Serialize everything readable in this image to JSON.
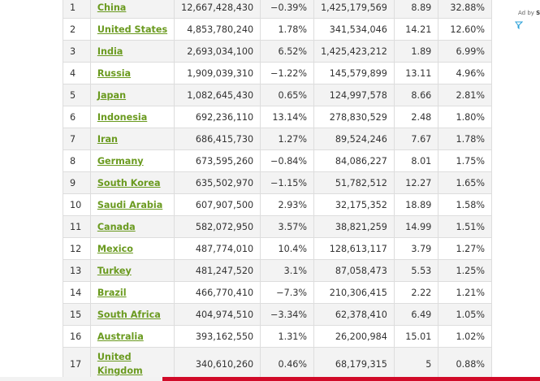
{
  "ad": {
    "prefix": "Ad by",
    "brand": "Sp"
  },
  "rows": [
    {
      "rank": "1",
      "country": "China",
      "emissions": "12,667,428,430",
      "change": "−0.39%",
      "population": "1,425,179,569",
      "per_capita": "8.89",
      "share": "32.88%"
    },
    {
      "rank": "2",
      "country": "United States",
      "emissions": "4,853,780,240",
      "change": "1.78%",
      "population": "341,534,046",
      "per_capita": "14.21",
      "share": "12.60%"
    },
    {
      "rank": "3",
      "country": "India",
      "emissions": "2,693,034,100",
      "change": "6.52%",
      "population": "1,425,423,212",
      "per_capita": "1.89",
      "share": "6.99%"
    },
    {
      "rank": "4",
      "country": "Russia",
      "emissions": "1,909,039,310",
      "change": "−1.22%",
      "population": "145,579,899",
      "per_capita": "13.11",
      "share": "4.96%"
    },
    {
      "rank": "5",
      "country": "Japan",
      "emissions": "1,082,645,430",
      "change": "0.65%",
      "population": "124,997,578",
      "per_capita": "8.66",
      "share": "2.81%"
    },
    {
      "rank": "6",
      "country": "Indonesia",
      "emissions": "692,236,110",
      "change": "13.14%",
      "population": "278,830,529",
      "per_capita": "2.48",
      "share": "1.80%"
    },
    {
      "rank": "7",
      "country": "Iran",
      "emissions": "686,415,730",
      "change": "1.27%",
      "population": "89,524,246",
      "per_capita": "7.67",
      "share": "1.78%"
    },
    {
      "rank": "8",
      "country": "Germany",
      "emissions": "673,595,260",
      "change": "−0.84%",
      "population": "84,086,227",
      "per_capita": "8.01",
      "share": "1.75%"
    },
    {
      "rank": "9",
      "country": "South Korea",
      "emissions": "635,502,970",
      "change": "−1.15%",
      "population": "51,782,512",
      "per_capita": "12.27",
      "share": "1.65%"
    },
    {
      "rank": "10",
      "country": "Saudi Arabia",
      "emissions": "607,907,500",
      "change": "2.93%",
      "population": "32,175,352",
      "per_capita": "18.89",
      "share": "1.58%"
    },
    {
      "rank": "11",
      "country": "Canada",
      "emissions": "582,072,950",
      "change": "3.57%",
      "population": "38,821,259",
      "per_capita": "14.99",
      "share": "1.51%"
    },
    {
      "rank": "12",
      "country": "Mexico",
      "emissions": "487,774,010",
      "change": "10.4%",
      "population": "128,613,117",
      "per_capita": "3.79",
      "share": "1.27%"
    },
    {
      "rank": "13",
      "country": "Turkey",
      "emissions": "481,247,520",
      "change": "3.1%",
      "population": "87,058,473",
      "per_capita": "5.53",
      "share": "1.25%"
    },
    {
      "rank": "14",
      "country": "Brazil",
      "emissions": "466,770,410",
      "change": "−7.3%",
      "population": "210,306,415",
      "per_capita": "2.22",
      "share": "1.21%"
    },
    {
      "rank": "15",
      "country": "South Africa",
      "emissions": "404,974,510",
      "change": "−3.34%",
      "population": "62,378,410",
      "per_capita": "6.49",
      "share": "1.05%"
    },
    {
      "rank": "16",
      "country": "Australia",
      "emissions": "393,162,550",
      "change": "1.31%",
      "population": "26,200,984",
      "per_capita": "15.01",
      "share": "1.02%"
    },
    {
      "rank": "17",
      "country": "United Kingdom",
      "emissions": "340,610,260",
      "change": "0.46%",
      "population": "68,179,315",
      "per_capita": "5",
      "share": "0.88%"
    }
  ]
}
